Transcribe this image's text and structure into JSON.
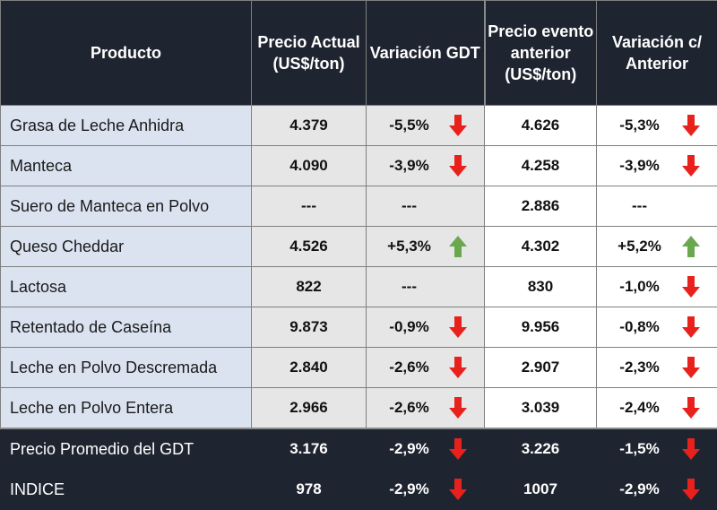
{
  "header": {
    "producto": "Producto",
    "precio_actual": "Precio Actual (US$/ton)",
    "variacion_gdt": "Variación GDT",
    "precio_anterior": "Precio evento anterior (US$/ton)",
    "variacion_anterior": "Variación c/ Anterior"
  },
  "colors": {
    "header_bg": "#1f2530",
    "product_col_bg": "#dbe3f1",
    "current_price_bg": "#e6e6e6",
    "arrow_down": "#e8211c",
    "arrow_up": "#6aa84f"
  },
  "rows": [
    {
      "producto": "Grasa de Leche Anhidra",
      "precio_actual": "4.379",
      "var_gdt": "-5,5%",
      "var_gdt_dir": "down-arrow-icon",
      "precio_anterior": "4.626",
      "var_ant": "-5,3%",
      "var_ant_dir": "down-arrow-icon"
    },
    {
      "producto": "Manteca",
      "precio_actual": "4.090",
      "var_gdt": "-3,9%",
      "var_gdt_dir": "down-arrow-icon",
      "precio_anterior": "4.258",
      "var_ant": "-3,9%",
      "var_ant_dir": "down-arrow-icon"
    },
    {
      "producto": "Suero de Manteca en Polvo",
      "precio_actual": "---",
      "var_gdt": "---",
      "var_gdt_dir": "",
      "precio_anterior": "2.886",
      "var_ant": "---",
      "var_ant_dir": ""
    },
    {
      "producto": "Queso Cheddar",
      "precio_actual": "4.526",
      "var_gdt": "+5,3%",
      "var_gdt_dir": "up-arrow-icon",
      "precio_anterior": "4.302",
      "var_ant": "+5,2%",
      "var_ant_dir": "up-arrow-icon"
    },
    {
      "producto": "Lactosa",
      "precio_actual": "822",
      "var_gdt": "---",
      "var_gdt_dir": "",
      "precio_anterior": "830",
      "var_ant": "-1,0%",
      "var_ant_dir": "down-arrow-icon"
    },
    {
      "producto": "Retentado de Caseína",
      "precio_actual": "9.873",
      "var_gdt": "-0,9%",
      "var_gdt_dir": "down-arrow-icon",
      "precio_anterior": "9.956",
      "var_ant": "-0,8%",
      "var_ant_dir": "down-arrow-icon"
    },
    {
      "producto": "Leche en Polvo Descremada",
      "precio_actual": "2.840",
      "var_gdt": "-2,6%",
      "var_gdt_dir": "down-arrow-icon",
      "precio_anterior": "2.907",
      "var_ant": "-2,3%",
      "var_ant_dir": "down-arrow-icon"
    },
    {
      "producto": "Leche en Polvo Entera",
      "precio_actual": "2.966",
      "var_gdt": "-2,6%",
      "var_gdt_dir": "down-arrow-icon",
      "precio_anterior": "3.039",
      "var_ant": "-2,4%",
      "var_ant_dir": "down-arrow-icon"
    }
  ],
  "summary": [
    {
      "producto": "Precio Promedio del GDT",
      "precio_actual": "3.176",
      "var_gdt": "-2,9%",
      "var_gdt_dir": "down-arrow-icon",
      "precio_anterior": "3.226",
      "var_ant": "-1,5%",
      "var_ant_dir": "down-arrow-icon"
    },
    {
      "producto": "INDICE",
      "precio_actual": "978",
      "var_gdt": "-2,9%",
      "var_gdt_dir": "down-arrow-icon",
      "precio_anterior": "1007",
      "var_ant": "-2,9%",
      "var_ant_dir": "down-arrow-icon"
    }
  ]
}
